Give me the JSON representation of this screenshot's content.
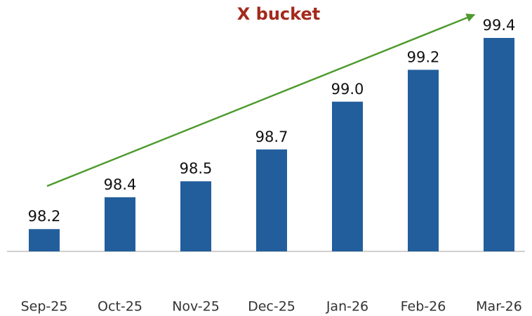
{
  "chart_data": {
    "type": "bar",
    "title": "X bucket",
    "categories": [
      "Sep-25",
      "Oct-25",
      "Nov-25",
      "Dec-25",
      "Jan-26",
      "Feb-26",
      "Mar-26"
    ],
    "values": [
      98.2,
      98.4,
      98.5,
      98.7,
      99.0,
      99.2,
      99.4
    ],
    "value_labels": [
      "98.2",
      "98.4",
      "98.5",
      "98.7",
      "99.0",
      "99.2",
      "99.4"
    ],
    "color": "#225e9c",
    "ylim": [
      98.06,
      99.55
    ]
  }
}
